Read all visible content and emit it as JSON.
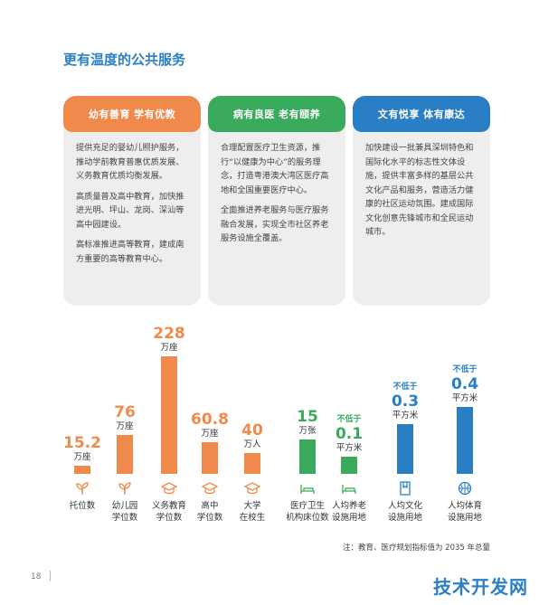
{
  "page": {
    "title": "更有温度的公共服务",
    "note": "注：教育、医疗规划指标值为 2035 年总量",
    "page_number": "18",
    "watermark": "技术开发网"
  },
  "cards": [
    {
      "heading": "幼有善育  学有优教",
      "color": "#ef8a4c",
      "paragraphs": [
        "提供充足的婴幼儿照护服务，推动学前教育普惠优质发展、义务教育优质均衡发展。",
        "高质量普及高中教育，加快推进光明、坪山、龙岗、深汕等高中园建设。",
        "高标准推进高等教育，建成南方重要的高等教育中心。"
      ]
    },
    {
      "heading": "病有良医  老有颐养",
      "color": "#3aaa5c",
      "paragraphs": [
        "合理配置医疗卫生资源，推行“以健康为中心”的服务理念，打造粤港澳大湾区医疗高地和全国重要医疗中心。",
        "全面推进养老服务与医疗服务融合发展，实现全市社区养老服务设施全覆盖。"
      ]
    },
    {
      "heading": "文有悦享  体有康达",
      "color": "#2a7fc4",
      "paragraphs": [
        "加快建设一批兼具深圳特色和国际化水平的标志性文体设施，提供丰富多样的基层公共文化产品和服务，营造活力健康的社区运动氛围。建成国际文化创意先锋城市和全民运动城市。"
      ]
    }
  ],
  "chart_data": {
    "type": "bar",
    "categories": [
      "托位数",
      "幼儿园\n学位数",
      "义务教育\n学位数",
      "高中\n学位数",
      "大学\n在校生",
      "医疗卫生\n机构床位数",
      "人均养老\n设施用地",
      "人均文化\n设施用地",
      "人均体育\n设施用地"
    ],
    "values": [
      15.2,
      76,
      228,
      60.8,
      40,
      15,
      0.1,
      0.3,
      0.4
    ],
    "value_labels": [
      "15.2",
      "76",
      "228",
      "60.8",
      "40",
      "15",
      "0.1",
      "0.3",
      "0.4"
    ],
    "units": [
      "万座",
      "万座",
      "万座",
      "万座",
      "万人",
      "万张",
      "平方米",
      "平方米",
      "平方米"
    ],
    "prefix": [
      "",
      "",
      "",
      "",
      "",
      "",
      "不低于",
      "不低于",
      "不低于"
    ],
    "colors": [
      "#ef8a4c",
      "#ef8a4c",
      "#ef8a4c",
      "#ef8a4c",
      "#ef8a4c",
      "#3aaa5c",
      "#3aaa5c",
      "#2a7fc4",
      "#2a7fc4"
    ],
    "icons": [
      "sprout-icon",
      "sprout-icon",
      "graduation-cap-icon",
      "graduation-cap-icon",
      "graduation-cap-icon",
      "hospital-bed-icon",
      "hospital-bed-icon",
      "book-icon",
      "basketball-icon"
    ],
    "title": "",
    "xlabel": "",
    "ylabel": ""
  }
}
